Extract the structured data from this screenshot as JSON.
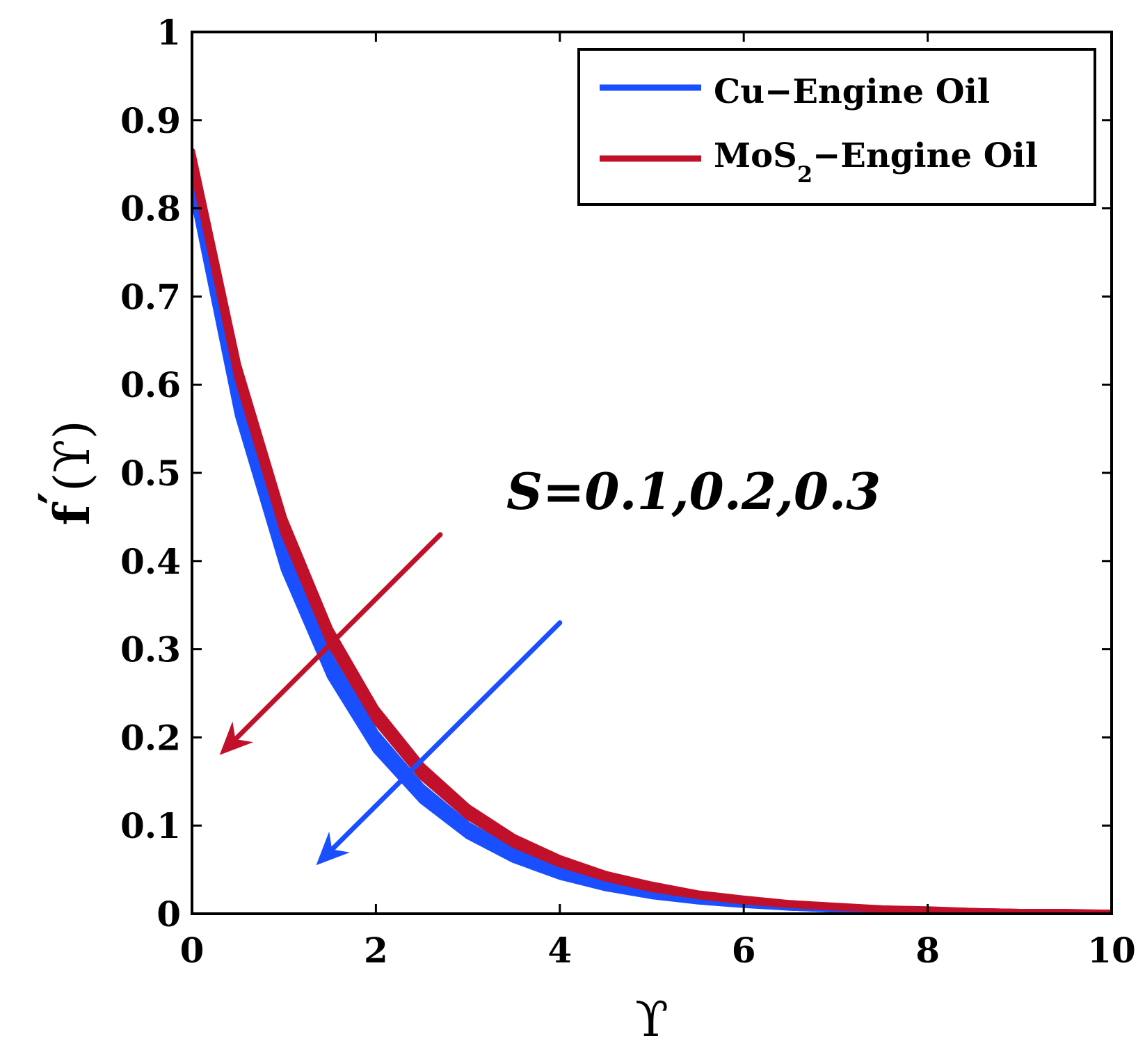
{
  "chart_data": {
    "type": "line",
    "title": "",
    "xlabel": "ϒ",
    "ylabel": "f′(ϒ)",
    "ylabel_main": "f",
    "ylabel_prime": "′",
    "ylabel_arg": "(ϒ)",
    "xlim": [
      0,
      10
    ],
    "ylim": [
      0,
      1
    ],
    "x_ticks": [
      0,
      2,
      4,
      6,
      8,
      10
    ],
    "x_tick_labels": [
      "0",
      "2",
      "4",
      "6",
      "8",
      "10"
    ],
    "y_ticks": [
      0,
      0.1,
      0.2,
      0.3,
      0.4,
      0.5,
      0.6,
      0.7,
      0.8,
      0.9,
      1
    ],
    "y_tick_labels": [
      "0",
      "0.1",
      "0.2",
      "0.3",
      "0.4",
      "0.5",
      "0.6",
      "0.7",
      "0.8",
      "0.9",
      "1"
    ],
    "grid": false,
    "legend_position": "top-right",
    "x": [
      0,
      0.5,
      1,
      1.5,
      2,
      2.5,
      3,
      3.5,
      4,
      4.5,
      5,
      5.5,
      6,
      6.5,
      7,
      7.5,
      8,
      8.5,
      9,
      9.5,
      10
    ],
    "series": [
      {
        "name": "Cu−Engine Oil",
        "group": "Cu",
        "color": "#1a4fff",
        "S": 0.1,
        "values": [
          0.84,
          0.59,
          0.415,
          0.292,
          0.205,
          0.144,
          0.101,
          0.071,
          0.05,
          0.035,
          0.025,
          0.017,
          0.012,
          0.009,
          0.006,
          0.004,
          0.003,
          0.002,
          0.001,
          0.001,
          0.0
        ]
      },
      {
        "name": "Cu−Engine Oil",
        "group": "Cu",
        "color": "#1a4fff",
        "S": 0.2,
        "values": [
          0.83,
          0.578,
          0.402,
          0.28,
          0.195,
          0.135,
          0.094,
          0.066,
          0.046,
          0.032,
          0.022,
          0.015,
          0.011,
          0.007,
          0.005,
          0.004,
          0.002,
          0.002,
          0.001,
          0.001,
          0.0
        ]
      },
      {
        "name": "Cu−Engine Oil",
        "group": "Cu",
        "color": "#1a4fff",
        "S": 0.3,
        "values": [
          0.82,
          0.565,
          0.39,
          0.269,
          0.185,
          0.128,
          0.088,
          0.061,
          0.042,
          0.029,
          0.02,
          0.014,
          0.01,
          0.007,
          0.005,
          0.003,
          0.002,
          0.001,
          0.001,
          0.001,
          0.0
        ]
      },
      {
        "name": "MoS2−Engine Oil",
        "group": "MoS2",
        "color": "#c0102a",
        "S": 0.1,
        "values": [
          0.865,
          0.623,
          0.449,
          0.323,
          0.233,
          0.168,
          0.121,
          0.087,
          0.063,
          0.045,
          0.033,
          0.023,
          0.017,
          0.012,
          0.009,
          0.006,
          0.005,
          0.003,
          0.002,
          0.002,
          0.001
        ]
      },
      {
        "name": "MoS2−Engine Oil",
        "group": "MoS2",
        "color": "#c0102a",
        "S": 0.2,
        "values": [
          0.858,
          0.614,
          0.439,
          0.314,
          0.225,
          0.161,
          0.115,
          0.082,
          0.059,
          0.042,
          0.03,
          0.022,
          0.015,
          0.011,
          0.008,
          0.006,
          0.004,
          0.003,
          0.002,
          0.001,
          0.001
        ]
      },
      {
        "name": "MoS2−Engine Oil",
        "group": "MoS2",
        "color": "#c0102a",
        "S": 0.3,
        "values": [
          0.85,
          0.605,
          0.43,
          0.306,
          0.218,
          0.155,
          0.11,
          0.078,
          0.056,
          0.04,
          0.028,
          0.02,
          0.014,
          0.01,
          0.007,
          0.005,
          0.004,
          0.003,
          0.002,
          0.001,
          0.001
        ]
      }
    ],
    "legend": [
      {
        "label_main": "Cu−Engine Oil",
        "color": "#1a4fff"
      },
      {
        "label_main": "MoS",
        "label_sub": "2",
        "label_rest": "−Engine Oil",
        "color": "#c0102a"
      }
    ],
    "annotation": "S=0.1,0.2,0.3",
    "arrows": [
      {
        "color": "#c0102a",
        "from": [
          2.7,
          0.43
        ],
        "to": [
          0.3,
          0.18
        ]
      },
      {
        "color": "#1a4fff",
        "from": [
          4.0,
          0.33
        ],
        "to": [
          1.35,
          0.055
        ]
      }
    ]
  }
}
